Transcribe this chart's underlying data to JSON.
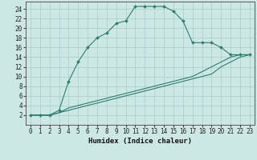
{
  "xlabel": "Humidex (Indice chaleur)",
  "bg_color": "#cce8e4",
  "line_color": "#2e7d6e",
  "grid_color": "#aaccca",
  "xlim": [
    -0.5,
    23.5
  ],
  "ylim": [
    0,
    25.5
  ],
  "xticks": [
    0,
    1,
    2,
    3,
    4,
    5,
    6,
    7,
    8,
    9,
    10,
    11,
    12,
    13,
    14,
    15,
    16,
    17,
    18,
    19,
    20,
    21,
    22,
    23
  ],
  "yticks": [
    2,
    4,
    6,
    8,
    10,
    12,
    14,
    16,
    18,
    20,
    22,
    24
  ],
  "line1_x": [
    0,
    1,
    2,
    3,
    4,
    5,
    6,
    7,
    8,
    9,
    10,
    11,
    12,
    13,
    14,
    15,
    16,
    17,
    18,
    19,
    20,
    21,
    22,
    23
  ],
  "line1_y": [
    2,
    2,
    2,
    3,
    9,
    13,
    16,
    18,
    19,
    21,
    21.5,
    24.5,
    24.5,
    24.5,
    24.5,
    23.5,
    21.5,
    17,
    17,
    17,
    16,
    14.5,
    14.5,
    14.5
  ],
  "line2_x": [
    0,
    1,
    2,
    3,
    4,
    5,
    6,
    7,
    8,
    9,
    10,
    11,
    12,
    13,
    14,
    15,
    16,
    17,
    18,
    19,
    20,
    21,
    22,
    23
  ],
  "line2_y": [
    2,
    2,
    2,
    2.5,
    3,
    3.5,
    4,
    4.5,
    5,
    5.5,
    6,
    6.5,
    7,
    7.5,
    8,
    8.5,
    9,
    9.5,
    10,
    10.5,
    12,
    13,
    14,
    14.5
  ],
  "line3_x": [
    0,
    1,
    2,
    3,
    4,
    5,
    6,
    7,
    8,
    9,
    10,
    11,
    12,
    13,
    14,
    15,
    16,
    17,
    18,
    19,
    20,
    21,
    22,
    23
  ],
  "line3_y": [
    2,
    2,
    2,
    2.5,
    3.5,
    4,
    4.5,
    5,
    5.5,
    6,
    6.5,
    7,
    7.5,
    8,
    8.5,
    9,
    9.5,
    10,
    11,
    12,
    13,
    14,
    14.5,
    14.5
  ],
  "tick_fontsize": 5.5,
  "xlabel_fontsize": 6.5
}
